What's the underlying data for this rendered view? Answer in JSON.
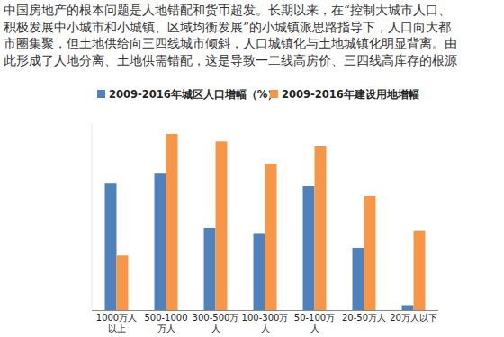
{
  "chart_data": {
    "type": "bar",
    "annotations": [
      "中国房地产的根本问题是人地错配和货币超发。长期以来，在“控制大城市人口、",
      "积极发展中小城市和小城镇、区域均衡发展”的小城镇派思路指导下，人口向大都",
      "市圈集聚，但土地供给向三四线城市倾斜，人口城镇化与土地城镇化明显背离。由",
      "此形成了人地分离、土地供需错配，这是导致一二线高房价、三四线高库存的根源"
    ],
    "categories": [
      "1000万人以上",
      "500-1000万人",
      "300-500万人",
      "100-300万人",
      "50-100万人",
      "20-50万人",
      "20万人以下"
    ],
    "series": [
      {
        "name": "2009-2016年城区人口增幅（%）",
        "color": "#4f81bd",
        "values": [
          51,
          55,
          33,
          31,
          50,
          25,
          2
        ]
      },
      {
        "name": "2009-2016年建设用地增幅",
        "color": "#f79646",
        "values": [
          22,
          71,
          68,
          59,
          66,
          46,
          32
        ]
      }
    ],
    "ylim": [
      0,
      75
    ],
    "grid": false,
    "legend": "top",
    "data_labels": false,
    "tick_labels": "x"
  }
}
